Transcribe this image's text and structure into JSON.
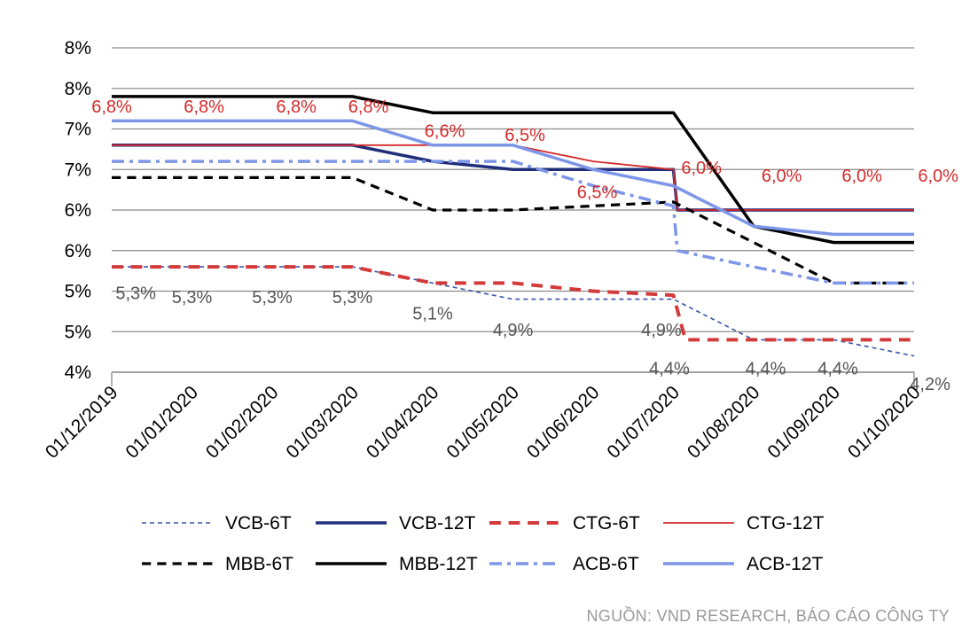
{
  "chart_data": {
    "type": "line",
    "x": [
      "01/12/2019",
      "01/01/2020",
      "01/02/2020",
      "01/03/2020",
      "01/04/2020",
      "01/05/2020",
      "01/06/2020",
      "01/07/2020",
      "01/08/2020",
      "01/09/2020",
      "01/10/2020"
    ],
    "y_tick_labels": [
      "4%",
      "5%",
      "5%",
      "6%",
      "6%",
      "7%",
      "7%",
      "8%",
      "8%"
    ],
    "y_tick_values": [
      4.0,
      4.5,
      5.0,
      5.5,
      6.0,
      6.5,
      7.0,
      7.5,
      8.0
    ],
    "ylim": [
      4.0,
      8.0
    ],
    "grid": true,
    "legend_position": "bottom",
    "series": [
      {
        "name": "VCB-6T",
        "color": "#3a55a8",
        "dash": "dotted-short",
        "width": 1.6,
        "values": [
          [
            0,
            5.3
          ],
          [
            1,
            5.3
          ],
          [
            2,
            5.3
          ],
          [
            3,
            5.3
          ],
          [
            4,
            5.1
          ],
          [
            5,
            4.9
          ],
          [
            6,
            4.9
          ],
          [
            7,
            4.9
          ],
          [
            8,
            4.4
          ],
          [
            9,
            4.4
          ],
          [
            10,
            4.2
          ]
        ]
      },
      {
        "name": "VCB-12T",
        "color": "#1f2e7a",
        "dash": "solid",
        "width": 3.5,
        "values": [
          [
            0,
            6.8
          ],
          [
            1,
            6.8
          ],
          [
            2,
            6.8
          ],
          [
            3,
            6.8
          ],
          [
            4,
            6.6
          ],
          [
            5,
            6.5
          ],
          [
            6,
            6.5
          ],
          [
            7,
            6.5
          ],
          [
            7.05,
            6.0
          ],
          [
            8,
            6.0
          ],
          [
            9,
            6.0
          ],
          [
            10,
            6.0
          ]
        ]
      },
      {
        "name": "CTG-6T",
        "color": "#d33a3a",
        "dash": "dashed",
        "width": 4,
        "values": [
          [
            0,
            5.3
          ],
          [
            1,
            5.3
          ],
          [
            2,
            5.3
          ],
          [
            3,
            5.3
          ],
          [
            4,
            5.1
          ],
          [
            5,
            5.1
          ],
          [
            6,
            5.0
          ],
          [
            7,
            4.95
          ],
          [
            7.15,
            4.4
          ],
          [
            8,
            4.4
          ],
          [
            9,
            4.4
          ],
          [
            10,
            4.4
          ]
        ]
      },
      {
        "name": "CTG-12T",
        "color": "#d32a2a",
        "dash": "solid",
        "width": 1.8,
        "values": [
          [
            0,
            6.8
          ],
          [
            1,
            6.8
          ],
          [
            2,
            6.8
          ],
          [
            3,
            6.8
          ],
          [
            4,
            6.8
          ],
          [
            5,
            6.8
          ],
          [
            6,
            6.6
          ],
          [
            7,
            6.5
          ],
          [
            7.05,
            6.0
          ],
          [
            8,
            6.0
          ],
          [
            9,
            6.0
          ],
          [
            10,
            6.0
          ]
        ]
      },
      {
        "name": "MBB-6T",
        "color": "#000000",
        "dash": "dashed",
        "width": 3.2,
        "values": [
          [
            0,
            6.4
          ],
          [
            1,
            6.4
          ],
          [
            2,
            6.4
          ],
          [
            3,
            6.4
          ],
          [
            4,
            6.0
          ],
          [
            5,
            6.0
          ],
          [
            6,
            6.05
          ],
          [
            7,
            6.1
          ],
          [
            8,
            5.6
          ],
          [
            9,
            5.1
          ],
          [
            10,
            5.1
          ]
        ]
      },
      {
        "name": "MBB-12T",
        "color": "#000000",
        "dash": "solid",
        "width": 3.5,
        "values": [
          [
            0,
            7.4
          ],
          [
            1,
            7.4
          ],
          [
            2,
            7.4
          ],
          [
            3,
            7.4
          ],
          [
            4,
            7.2
          ],
          [
            5,
            7.2
          ],
          [
            6,
            7.2
          ],
          [
            7,
            7.2
          ],
          [
            8,
            5.8
          ],
          [
            9,
            5.6
          ],
          [
            10,
            5.6
          ]
        ]
      },
      {
        "name": "ACB-6T",
        "color": "#7d96e8",
        "dash": "dashdot",
        "width": 3.5,
        "values": [
          [
            0,
            6.6
          ],
          [
            1,
            6.6
          ],
          [
            2,
            6.6
          ],
          [
            3,
            6.6
          ],
          [
            4,
            6.6
          ],
          [
            5,
            6.6
          ],
          [
            6,
            6.3
          ],
          [
            7,
            6.05
          ],
          [
            7.05,
            5.5
          ],
          [
            8,
            5.3
          ],
          [
            9,
            5.1
          ],
          [
            10,
            5.1
          ]
        ]
      },
      {
        "name": "ACB-12T",
        "color": "#7d96e8",
        "dash": "solid",
        "width": 3.5,
        "values": [
          [
            0,
            7.1
          ],
          [
            1,
            7.1
          ],
          [
            2,
            7.1
          ],
          [
            3,
            7.1
          ],
          [
            4,
            6.8
          ],
          [
            5,
            6.8
          ],
          [
            6,
            6.5
          ],
          [
            7,
            6.3
          ],
          [
            8,
            5.8
          ],
          [
            9,
            5.7
          ],
          [
            10,
            5.7
          ]
        ]
      }
    ],
    "annotations": [
      {
        "text": "6,8%",
        "x": 0,
        "y": 7.2,
        "color": "#d32a2a",
        "size": 20
      },
      {
        "text": "6,8%",
        "x": 1.15,
        "y": 7.2,
        "color": "#d32a2a",
        "size": 20
      },
      {
        "text": "6,8%",
        "x": 2.3,
        "y": 7.2,
        "color": "#d32a2a",
        "size": 20
      },
      {
        "text": "6,8%",
        "x": 3.2,
        "y": 7.2,
        "color": "#d32a2a",
        "size": 20
      },
      {
        "text": "6,6%",
        "x": 4.15,
        "y": 6.9,
        "color": "#d32a2a",
        "size": 20
      },
      {
        "text": "6,5%",
        "x": 5.15,
        "y": 6.85,
        "color": "#d32a2a",
        "size": 20
      },
      {
        "text": "6,5%",
        "x": 6.05,
        "y": 6.15,
        "color": "#d32a2a",
        "size": 20
      },
      {
        "text": "6,0%",
        "x": 7.35,
        "y": 6.45,
        "color": "#d32a2a",
        "size": 20
      },
      {
        "text": "6,0%",
        "x": 8.35,
        "y": 6.35,
        "color": "#d32a2a",
        "size": 20
      },
      {
        "text": "6,0%",
        "x": 9.35,
        "y": 6.35,
        "color": "#d32a2a",
        "size": 20
      },
      {
        "text": "6,0%",
        "x": 10.3,
        "y": 6.35,
        "color": "#d32a2a",
        "size": 20
      },
      {
        "text": "5,3%",
        "x": 0.3,
        "y": 4.9,
        "color": "#555555",
        "size": 20
      },
      {
        "text": "5,3%",
        "x": 1.0,
        "y": 4.85,
        "color": "#555555",
        "size": 20
      },
      {
        "text": "5,3%",
        "x": 2.0,
        "y": 4.85,
        "color": "#555555",
        "size": 20
      },
      {
        "text": "5,3%",
        "x": 3.0,
        "y": 4.85,
        "color": "#555555",
        "size": 20
      },
      {
        "text": "5,1%",
        "x": 4.0,
        "y": 4.65,
        "color": "#555555",
        "size": 20
      },
      {
        "text": "4,9%",
        "x": 5.0,
        "y": 4.45,
        "color": "#555555",
        "size": 20
      },
      {
        "text": "4,9%",
        "x": 6.85,
        "y": 4.45,
        "color": "#555555",
        "size": 20
      },
      {
        "text": "4,4%",
        "x": 6.95,
        "y": 3.97,
        "color": "#555555",
        "size": 20
      },
      {
        "text": "4,4%",
        "x": 8.15,
        "y": 3.97,
        "color": "#555555",
        "size": 20
      },
      {
        "text": "4,4%",
        "x": 9.05,
        "y": 3.97,
        "color": "#555555",
        "size": 20
      },
      {
        "text": "4,2%",
        "x": 10.2,
        "y": 3.78,
        "color": "#555555",
        "size": 20
      }
    ]
  },
  "source_note": "NGUỒN: VND RESEARCH, BÁO CÁO CÔNG TY"
}
